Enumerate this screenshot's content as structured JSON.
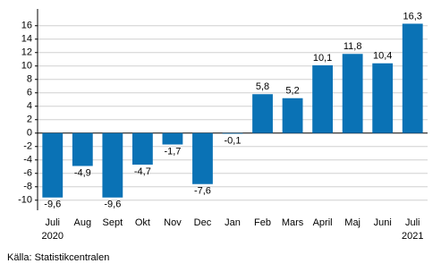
{
  "chart_data": {
    "type": "bar",
    "categories": [
      "Juli",
      "Aug",
      "Sept",
      "Okt",
      "Nov",
      "Dec",
      "Jan",
      "Feb",
      "Mars",
      "April",
      "Maj",
      "Juni",
      "Juli"
    ],
    "x_sublabels": [
      "2020",
      null,
      null,
      null,
      null,
      null,
      null,
      null,
      null,
      null,
      null,
      null,
      "2021"
    ],
    "values": [
      -9.6,
      -4.9,
      -9.6,
      -4.7,
      -1.7,
      -7.6,
      -0.1,
      5.8,
      5.2,
      10.1,
      11.8,
      10.4,
      16.3
    ],
    "value_labels": [
      "-9,6",
      "-4,9",
      "-9,6",
      "-4,7",
      "-1,7",
      "-7,6",
      "-0,1",
      "5,8",
      "5,2",
      "10,1",
      "11,8",
      "10,4",
      "16,3"
    ],
    "color": "#0a72b5",
    "ylim": [
      -11.5,
      18.5
    ],
    "yticks": [
      -10,
      -8,
      -6,
      -4,
      -2,
      0,
      2,
      4,
      6,
      8,
      10,
      12,
      14,
      16
    ],
    "grid": true,
    "source": "Källa: Statistikcentralen"
  }
}
